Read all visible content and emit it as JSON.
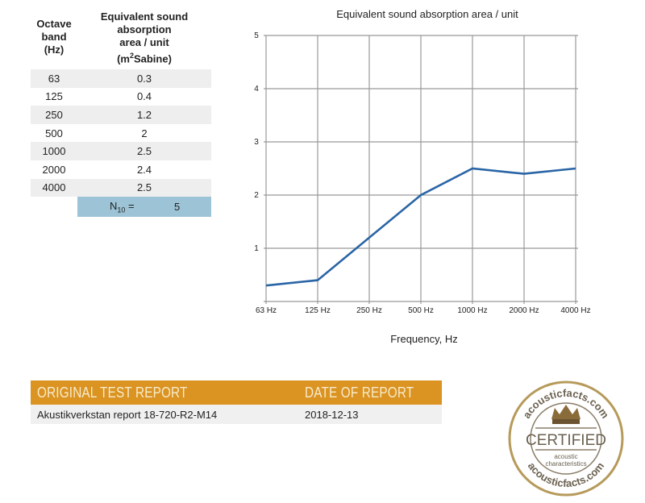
{
  "table": {
    "col1_header": [
      "Octave",
      "band",
      "(Hz)"
    ],
    "col2_header": [
      "Equivalent sound",
      "absorption",
      "area / unit",
      "(m",
      "2",
      "Sabine)"
    ],
    "rows": [
      {
        "band": "63",
        "value": "0.3"
      },
      {
        "band": "125",
        "value": "0.4"
      },
      {
        "band": "250",
        "value": "1.2"
      },
      {
        "band": "500",
        "value": "2"
      },
      {
        "band": "1000",
        "value": "2.5"
      },
      {
        "band": "2000",
        "value": "2.4"
      },
      {
        "band": "4000",
        "value": "2.5"
      }
    ],
    "n10_label": "N",
    "n10_sub": "10",
    "n10_eq": " =",
    "n10_value": "5"
  },
  "chart_data": {
    "type": "line",
    "title": "Equivalent sound absorption area / unit",
    "xlabel": "Frequency, Hz",
    "ylabel": "",
    "categories": [
      "63 Hz",
      "125 Hz",
      "250 Hz",
      "500 Hz",
      "1000 Hz",
      "2000 Hz",
      "4000 Hz"
    ],
    "series": [
      {
        "name": "Equivalent sound absorption area / unit",
        "values": [
          0.3,
          0.4,
          1.2,
          2,
          2.5,
          2.4,
          2.5
        ],
        "color": "#2a65a6"
      }
    ],
    "ylim": [
      0,
      5
    ],
    "yticks": [
      "1",
      "2",
      "3",
      "4",
      "5"
    ],
    "grid": true
  },
  "report": {
    "header_left": "ORIGINAL TEST REPORT",
    "header_right": "DATE OF REPORT",
    "report_name": "Akustikverkstan report 18-720-R2-M14",
    "report_date": "2018-12-13",
    "accent_color": "#db9322"
  },
  "seal": {
    "top_text": "acousticfacts.com",
    "bottom_text": "acousticfacts.com",
    "certified": "CERTIFIED",
    "line1": "acoustic",
    "line2": "characteristics"
  }
}
